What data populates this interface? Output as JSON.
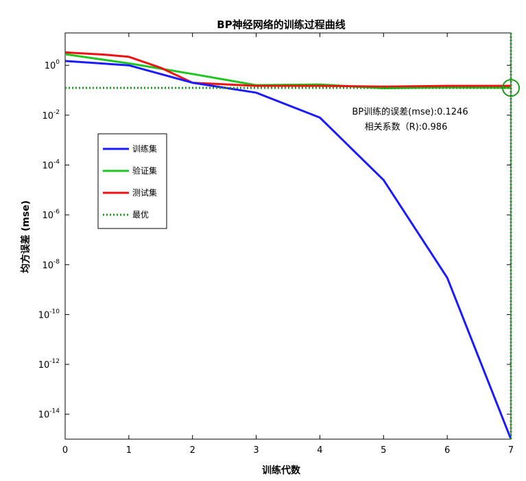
{
  "chart_data": {
    "type": "line",
    "title": "BP神经网络的训练过程曲线",
    "xlabel": "训练代数",
    "ylabel": "均方误差 (mse)",
    "xlim": [
      0,
      7
    ],
    "ylim_log10": [
      -15,
      1.3
    ],
    "yscale": "log",
    "x": [
      0,
      1,
      2,
      3,
      4,
      5,
      6,
      7
    ],
    "x_tick_labels": [
      "0",
      "1",
      "2",
      "3",
      "4",
      "5",
      "6",
      "7"
    ],
    "y_ticks": [
      {
        "value": 1,
        "base": "10",
        "exp": "0"
      },
      {
        "value": 0.01,
        "base": "10",
        "exp": "-2"
      },
      {
        "value": 0.0001,
        "base": "10",
        "exp": "-4"
      },
      {
        "value": 1e-06,
        "base": "10",
        "exp": "-6"
      },
      {
        "value": 1e-08,
        "base": "10",
        "exp": "-8"
      },
      {
        "value": 1e-10,
        "base": "10",
        "exp": "-10"
      },
      {
        "value": 1e-12,
        "base": "10",
        "exp": "-12"
      },
      {
        "value": 1e-14,
        "base": "10",
        "exp": "-14"
      }
    ],
    "series": [
      {
        "name": "训练集",
        "color": "#1a1aff",
        "style": "solid",
        "x": [
          0,
          1,
          2,
          3,
          4,
          5,
          6,
          7
        ],
        "values": [
          1.5,
          1.0,
          0.2,
          0.08,
          0.008,
          2.5e-05,
          3e-09,
          1e-15
        ]
      },
      {
        "name": "验证集",
        "color": "#1fc41f",
        "style": "solid",
        "x": [
          0,
          1,
          2,
          3,
          4,
          5,
          6,
          7
        ],
        "values": [
          2.8,
          1.2,
          0.45,
          0.16,
          0.17,
          0.12,
          0.13,
          0.125
        ]
      },
      {
        "name": "测试集",
        "color": "#ee1111",
        "style": "solid",
        "x": [
          0,
          0.6,
          1,
          1.5,
          2,
          3,
          4,
          5,
          6,
          7
        ],
        "values": [
          3.3,
          2.7,
          2.2,
          0.8,
          0.2,
          0.15,
          0.15,
          0.14,
          0.15,
          0.15
        ]
      },
      {
        "name": "最优",
        "color": "#1a9a1a",
        "style": "dotted",
        "best_x": 7,
        "best_value": 0.1246
      }
    ],
    "legend": {
      "placement": "left-middle"
    },
    "annotation": {
      "line1": "BP训练的误差(mse):0.1246",
      "line2": "相关系数（R):0.986"
    },
    "grid": false
  }
}
